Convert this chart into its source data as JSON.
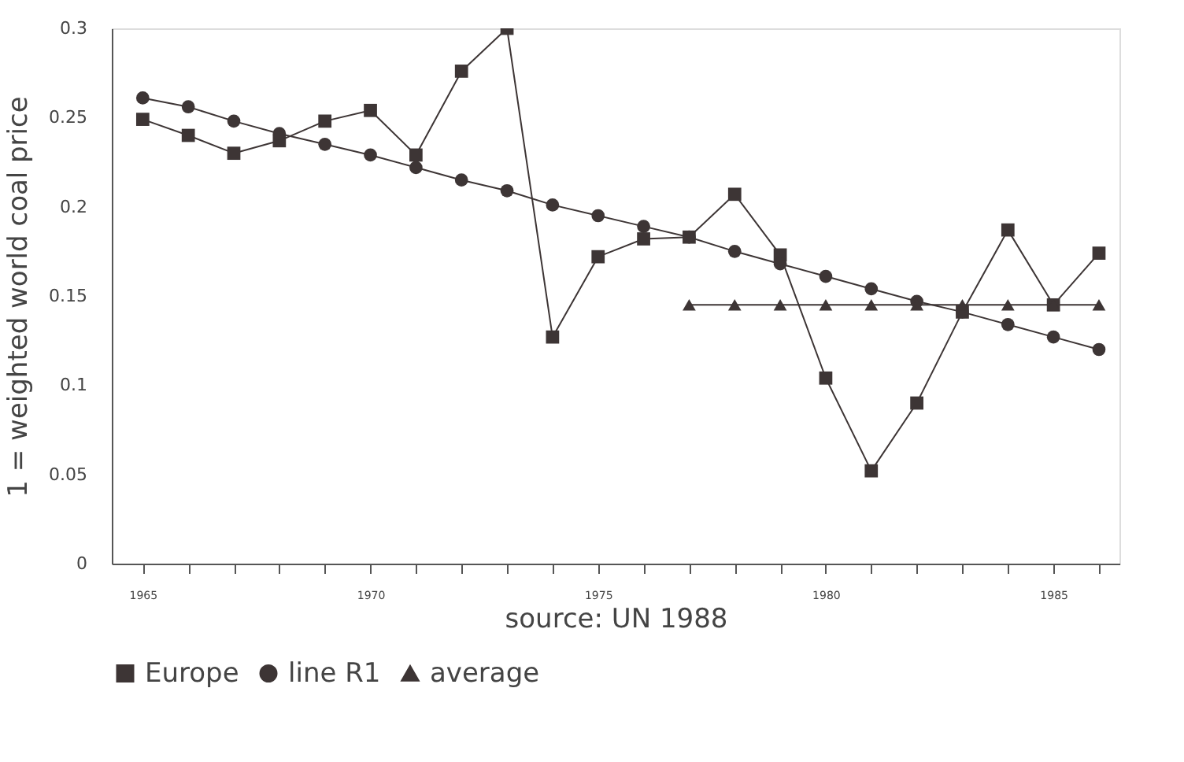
{
  "chart_data": {
    "type": "line",
    "xlabel": "source: UN 1988",
    "ylabel": "1 = weighted world coal price",
    "xlim": [
      1964.32,
      1986.45
    ],
    "ylim": [
      0,
      0.3
    ],
    "xticks": [
      1965,
      {
        "value": 1966,
        "label": null
      },
      {
        "value": 1967,
        "label": null
      },
      {
        "value": 1968,
        "label": null
      },
      {
        "value": 1969,
        "label": null
      },
      1970,
      {
        "value": 1971,
        "label": null
      },
      {
        "value": 1972,
        "label": null
      },
      {
        "value": 1973,
        "label": null
      },
      {
        "value": 1974,
        "label": null
      },
      1975,
      {
        "value": 1976,
        "label": null
      },
      {
        "value": 1977,
        "label": null
      },
      {
        "value": 1978,
        "label": null
      },
      {
        "value": 1979,
        "label": null
      },
      1980,
      {
        "value": 1981,
        "label": null
      },
      {
        "value": 1982,
        "label": null
      },
      {
        "value": 1983,
        "label": null
      },
      {
        "value": 1984,
        "label": null
      },
      1985,
      {
        "value": 1986,
        "label": null
      }
    ],
    "yticks": [
      0,
      0.05,
      0.1,
      0.15,
      0.2,
      0.25,
      0.3
    ],
    "grid": false,
    "legend": "bottom",
    "line_style": "solid",
    "series": [
      {
        "name": "Europe",
        "color": "#3d3535",
        "marker": "square",
        "x": [
          1965,
          1966,
          1967,
          1968,
          1969,
          1970,
          1971,
          1972,
          1973,
          1974,
          1975,
          1976,
          1977,
          1978,
          1979,
          1980,
          1981,
          1982,
          1983,
          1984,
          1985,
          1986
        ],
        "values": [
          0.249,
          0.24,
          0.23,
          0.237,
          0.248,
          0.254,
          0.229,
          0.276,
          0.3,
          0.127,
          0.172,
          0.182,
          0.183,
          0.207,
          0.173,
          0.104,
          0.052,
          0.09,
          0.141,
          0.187,
          0.145,
          0.174
        ]
      },
      {
        "name": "line R1",
        "color": "#3d3535",
        "marker": "circle",
        "x": [
          1965,
          1966,
          1967,
          1968,
          1969,
          1970,
          1971,
          1972,
          1973,
          1974,
          1975,
          1976,
          1977,
          1978,
          1979,
          1980,
          1981,
          1982,
          1983,
          1984,
          1985,
          1986
        ],
        "values": [
          0.261,
          0.256,
          0.248,
          0.241,
          0.235,
          0.229,
          0.222,
          0.215,
          0.209,
          0.201,
          0.195,
          0.189,
          0.183,
          0.175,
          0.168,
          0.161,
          0.154,
          0.147,
          0.141,
          0.134,
          0.127,
          0.12
        ]
      },
      {
        "name": "average",
        "color": "#3d3535",
        "marker": "triangle",
        "x": [
          1977,
          1978,
          1979,
          1980,
          1981,
          1982,
          1983,
          1984,
          1985,
          1986
        ],
        "values": [
          0.145,
          0.145,
          0.145,
          0.145,
          0.145,
          0.145,
          0.145,
          0.145,
          0.145,
          0.145
        ]
      }
    ]
  }
}
